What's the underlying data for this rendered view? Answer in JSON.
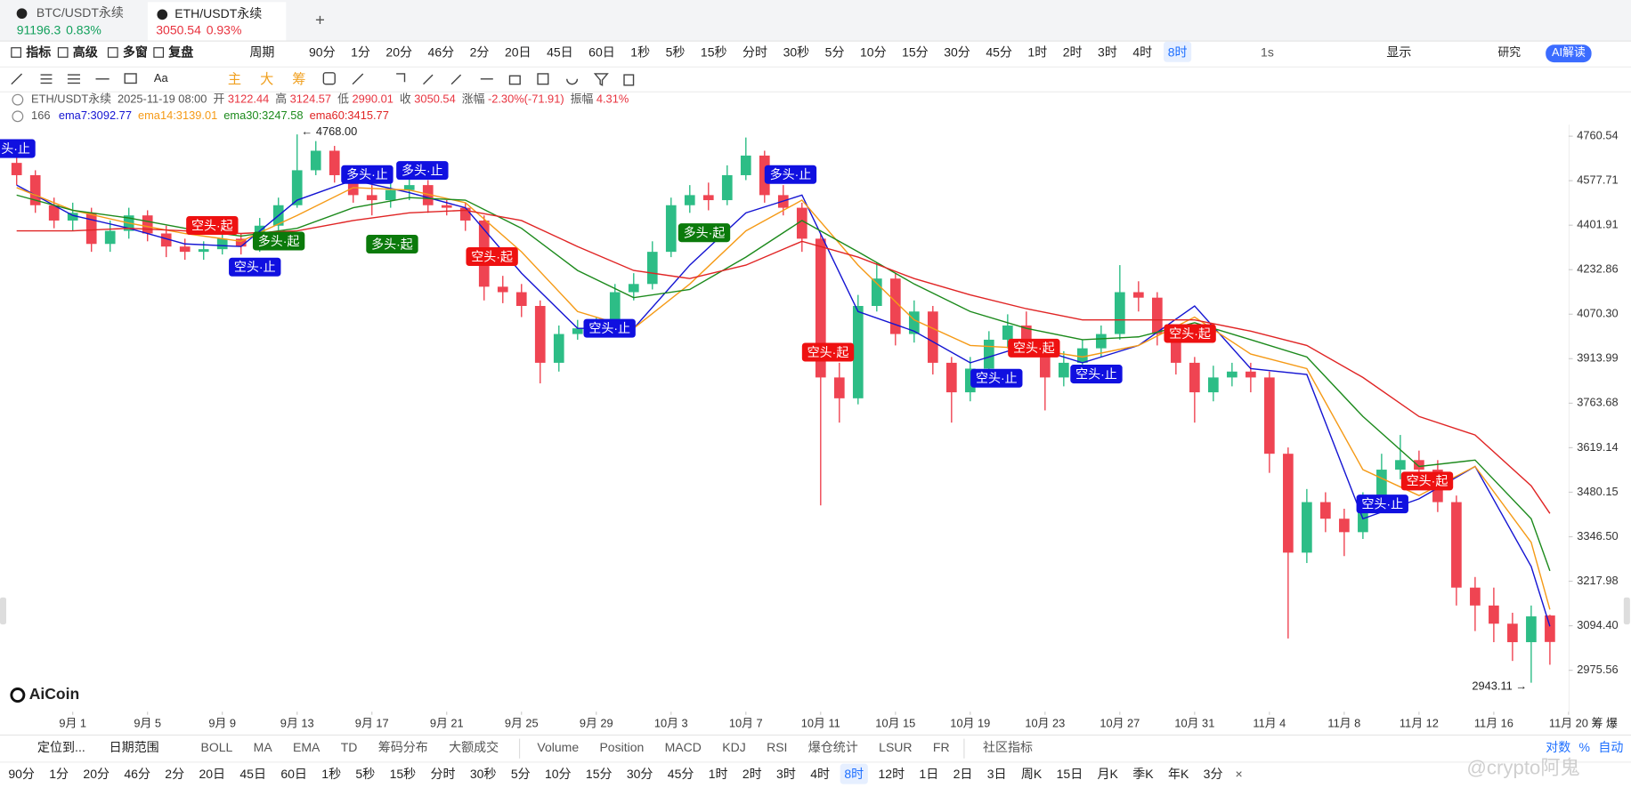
{
  "tabs": [
    {
      "symbol": "BTC/USDT永续",
      "price": "91196.3",
      "change": "0.83%"
    },
    {
      "symbol": "ETH/USDT永续",
      "price": "3050.54",
      "change": "0.93%"
    }
  ],
  "toolbar": {
    "left": [
      "指标",
      "高级",
      "多窗",
      "复盘"
    ],
    "period_label": "周期",
    "periods": [
      "90分",
      "1分",
      "20分",
      "46分",
      "2分",
      "20日",
      "45日",
      "60日",
      "1秒",
      "5秒",
      "15秒",
      "分时",
      "30秒",
      "5分",
      "10分",
      "15分",
      "30分",
      "45分",
      "1时",
      "2时",
      "3时",
      "4时",
      "8时"
    ],
    "active": "8时",
    "right": [
      "1s",
      "显示",
      "研究"
    ],
    "ai": "AI解读"
  },
  "drawing_tools": {
    "colors": [
      "主",
      "大",
      "筹"
    ]
  },
  "info": {
    "symbol": "ETH/USDT永续",
    "time": "2025-11-19 08:00",
    "items": [
      {
        "label": "开",
        "value": "3122.44"
      },
      {
        "label": "高",
        "value": "3124.57"
      },
      {
        "label": "低",
        "value": "2990.01"
      },
      {
        "label": "收",
        "value": "3050.54"
      },
      {
        "label": "涨幅",
        "value": "-2.30%(-71.91)"
      },
      {
        "label": "振幅",
        "value": "4.31%"
      }
    ],
    "count": "166",
    "emas": [
      "ema7:3092.77",
      "ema14:3139.01",
      "ema30:3247.58",
      "ema60:3415.77"
    ]
  },
  "chart_data": {
    "type": "candlestick",
    "log": true,
    "up_color": "#2dbd86",
    "down_color": "#ef4452",
    "xlim": [
      -3.89,
      80
    ],
    "ylim": [
      2869,
      4809
    ],
    "xticks": [
      {
        "value": 0,
        "label": "9月 1"
      },
      {
        "value": 4,
        "label": "9月 5"
      },
      {
        "value": 8,
        "label": "9月 9"
      },
      {
        "value": 12,
        "label": "9月 13"
      },
      {
        "value": 16,
        "label": "9月 17"
      },
      {
        "value": 20,
        "label": "9月 21"
      },
      {
        "value": 24,
        "label": "9月 25"
      },
      {
        "value": 28,
        "label": "9月 29"
      },
      {
        "value": 32,
        "label": "10月 3"
      },
      {
        "value": 36,
        "label": "10月 7"
      },
      {
        "value": 40,
        "label": "10月 11"
      },
      {
        "value": 44,
        "label": "10月 15"
      },
      {
        "value": 48,
        "label": "10月 19"
      },
      {
        "value": 52,
        "label": "10月 23"
      },
      {
        "value": 56,
        "label": "10月 27"
      },
      {
        "value": 60,
        "label": "10月 31"
      },
      {
        "value": 64,
        "label": "11月 4"
      },
      {
        "value": 68,
        "label": "11月 8"
      },
      {
        "value": 72,
        "label": "11月 12"
      },
      {
        "value": 76,
        "label": "11月 16"
      },
      {
        "value": 80,
        "label": "11月 20"
      }
    ],
    "yticks": [
      4760.54,
      4577.71,
      4401.91,
      4232.86,
      {
        "value": 4070.3,
        "label": "4070.30"
      },
      3913.99,
      3763.68,
      3619.14,
      3480.15,
      {
        "value": 3346.5,
        "label": "3346.50"
      },
      3217.98,
      {
        "value": 3094.4,
        "label": "3094.40"
      },
      2975.56
    ],
    "x": [
      -3,
      -2,
      -1,
      0,
      1,
      2,
      3,
      4,
      5,
      6,
      7,
      8,
      9,
      10,
      11,
      12,
      13,
      14,
      15,
      16,
      17,
      18,
      19,
      20,
      21,
      22,
      23,
      24,
      25,
      26,
      27,
      28,
      29,
      30,
      31,
      32,
      33,
      34,
      35,
      36,
      37,
      38,
      39,
      40,
      41,
      42,
      43,
      44,
      45,
      46,
      47,
      48,
      49,
      50,
      51,
      52,
      53,
      54,
      55,
      56,
      57,
      58,
      59,
      60,
      61,
      62,
      63,
      64,
      65,
      66,
      67,
      68,
      69,
      70,
      71,
      72,
      73,
      74,
      75,
      76,
      77,
      78,
      79
    ],
    "candles": {
      "open": [
        4650,
        4600,
        4480,
        4420,
        4450,
        4330,
        4380,
        4440,
        4370,
        4320,
        4300,
        4310,
        4350,
        4320,
        4400,
        4480,
        4620,
        4700,
        4600,
        4520,
        4500,
        4540,
        4560,
        4480,
        4470,
        4420,
        4170,
        4150,
        4100,
        3900,
        4000,
        4020,
        4030,
        4150,
        4180,
        4300,
        4480,
        4520,
        4500,
        4600,
        4680,
        4520,
        4470,
        4350,
        3850,
        3780,
        4100,
        4200,
        4000,
        4080,
        3900,
        3800,
        3880,
        3980,
        4030,
        3960,
        3850,
        3900,
        3950,
        4000,
        4150,
        4130,
        4000,
        3900,
        3800,
        3850,
        3870,
        3850,
        3600,
        3300,
        3450,
        3400,
        3360,
        3450,
        3550,
        3580,
        3550,
        3450,
        3200,
        3150,
        3100,
        3050,
        3122.44
      ],
      "high": [
        4690,
        4620,
        4510,
        4490,
        4470,
        4420,
        4470,
        4460,
        4400,
        4350,
        4340,
        4380,
        4370,
        4430,
        4510,
        4768,
        4740,
        4720,
        4620,
        4560,
        4580,
        4600,
        4580,
        4500,
        4490,
        4440,
        4210,
        4180,
        4120,
        4030,
        4050,
        4060,
        4180,
        4220,
        4340,
        4510,
        4560,
        4570,
        4640,
        4755,
        4700,
        4560,
        4490,
        4370,
        3900,
        4140,
        4260,
        4220,
        4120,
        4100,
        3920,
        3920,
        4010,
        4070,
        4080,
        3980,
        3940,
        3980,
        4030,
        4250,
        4190,
        4150,
        4030,
        3920,
        3890,
        3900,
        3900,
        3870,
        3620,
        3490,
        3480,
        3430,
        3480,
        3600,
        3660,
        3610,
        3580,
        3470,
        3230,
        3200,
        3130,
        3150,
        3124.57
      ],
      "low": [
        4560,
        4450,
        4390,
        4380,
        4300,
        4300,
        4350,
        4340,
        4280,
        4270,
        4270,
        4290,
        4290,
        4300,
        4380,
        4470,
        4600,
        4570,
        4490,
        4440,
        4470,
        4500,
        4450,
        4440,
        4380,
        4120,
        4110,
        4060,
        3830,
        3870,
        3980,
        3990,
        4010,
        4120,
        4160,
        4280,
        4450,
        4460,
        4480,
        4580,
        4490,
        4440,
        4300,
        3440,
        3700,
        3760,
        4080,
        3960,
        3970,
        3860,
        3700,
        3770,
        3850,
        3950,
        3920,
        3740,
        3820,
        3870,
        3920,
        3980,
        4080,
        3960,
        3860,
        3700,
        3770,
        3820,
        3800,
        3540,
        3060,
        3270,
        3360,
        3290,
        3340,
        3420,
        3520,
        3500,
        3420,
        3150,
        3080,
        3050,
        3000,
        2943.11,
        2990.01
      ],
      "close": [
        4600,
        4480,
        4420,
        4450,
        4330,
        4380,
        4440,
        4370,
        4320,
        4300,
        4310,
        4350,
        4320,
        4400,
        4480,
        4620,
        4700,
        4600,
        4520,
        4500,
        4540,
        4560,
        4480,
        4470,
        4420,
        4170,
        4150,
        4100,
        3900,
        4000,
        4020,
        4030,
        4150,
        4180,
        4300,
        4480,
        4520,
        4500,
        4600,
        4680,
        4520,
        4470,
        4350,
        3850,
        3780,
        4100,
        4200,
        4000,
        4080,
        3900,
        3800,
        3880,
        3980,
        4030,
        3960,
        3850,
        3900,
        3950,
        4000,
        4150,
        4130,
        4000,
        3900,
        3800,
        3850,
        3870,
        3850,
        3600,
        3300,
        3450,
        3400,
        3360,
        3450,
        3550,
        3580,
        3550,
        3450,
        3200,
        3150,
        3100,
        3050,
        3120,
        3050.54
      ]
    },
    "high_label": "← 4768.00",
    "low_label": "2943.11 →",
    "lines": {
      "x": [
        -3,
        0,
        3,
        6,
        9,
        12,
        15,
        18,
        21,
        24,
        27,
        30,
        33,
        36,
        39,
        42,
        45,
        48,
        51,
        54,
        57,
        60,
        63,
        66,
        69,
        72,
        75,
        78,
        79
      ],
      "series": [
        {
          "name": "ema7",
          "color": "#1414d2",
          "values": [
            4560,
            4440,
            4390,
            4330,
            4320,
            4500,
            4580,
            4530,
            4470,
            4220,
            4020,
            4020,
            4250,
            4450,
            4520,
            4080,
            4010,
            3900,
            3960,
            3900,
            3960,
            4100,
            3880,
            3860,
            3400,
            3460,
            3560,
            3260,
            3092.77
          ]
        },
        {
          "name": "ema14",
          "color": "#f59a16",
          "values": [
            4550,
            4460,
            4410,
            4370,
            4340,
            4440,
            4550,
            4540,
            4490,
            4300,
            4080,
            4020,
            4180,
            4380,
            4500,
            4250,
            4050,
            3960,
            3950,
            3920,
            3960,
            4060,
            3930,
            3880,
            3550,
            3470,
            3560,
            3330,
            3139.01
          ]
        },
        {
          "name": "ema30",
          "color": "#1c8a1c",
          "values": [
            4520,
            4460,
            4430,
            4390,
            4360,
            4390,
            4470,
            4510,
            4500,
            4390,
            4230,
            4130,
            4160,
            4280,
            4420,
            4300,
            4180,
            4080,
            4020,
            3980,
            3990,
            4040,
            3980,
            3920,
            3720,
            3560,
            3580,
            3400,
            3247.58
          ]
        },
        {
          "name": "ema60",
          "color": "#e02424",
          "values": [
            4380,
            4380,
            4390,
            4380,
            4370,
            4380,
            4420,
            4450,
            4460,
            4420,
            4320,
            4230,
            4200,
            4250,
            4340,
            4280,
            4200,
            4140,
            4090,
            4050,
            4050,
            4050,
            4010,
            3960,
            3850,
            3720,
            3660,
            3500,
            3415.77
          ]
        }
      ]
    },
    "signals": [
      {
        "label": "头·止",
        "color": "#1010e0"
      },
      {
        "label": "空头·起",
        "color": "#ee1111"
      },
      {
        "label": "多头·起",
        "color": "#0b7a0b"
      },
      {
        "label": "空头·止",
        "color": "#1010e0"
      },
      {
        "label": "多头·止",
        "color": "#1010e0"
      },
      {
        "label": "多头·止",
        "color": "#1010e0"
      },
      {
        "label": "多头·起",
        "color": "#0b7a0b"
      },
      {
        "label": "空头·起",
        "color": "#ee1111"
      },
      {
        "label": "空头·止",
        "color": "#1010e0"
      },
      {
        "label": "多头·起",
        "color": "#0b7a0b"
      },
      {
        "label": "多头·止",
        "color": "#1010e0"
      },
      {
        "label": "空头·起",
        "color": "#ee1111"
      },
      {
        "label": "空头·止",
        "color": "#1010e0"
      },
      {
        "label": "空头·起",
        "color": "#ee1111"
      },
      {
        "label": "空头·止",
        "color": "#1010e0"
      },
      {
        "label": "空头·起",
        "color": "#ee1111"
      },
      {
        "label": "空头·止",
        "color": "#1010e0"
      },
      {
        "label": "空头·起",
        "color": "#ee1111"
      }
    ],
    "axis_corner": [
      "筹",
      "爆"
    ]
  },
  "brand": "AiCoin",
  "bottom": {
    "left": [
      "定位到...",
      "日期范围"
    ],
    "indicators": [
      "BOLL",
      "MA",
      "EMA",
      "TD",
      "筹码分布",
      "大额成交"
    ],
    "indicators2": [
      "Volume",
      "Position",
      "MACD",
      "KDJ",
      "RSI",
      "爆仓统计",
      "LSUR",
      "FR"
    ],
    "social": "社区指标",
    "right": [
      "对数",
      "%",
      "自动"
    ]
  },
  "periods_bottom": [
    "90分",
    "1分",
    "20分",
    "46分",
    "2分",
    "20日",
    "45日",
    "60日",
    "1秒",
    "5秒",
    "15秒",
    "分时",
    "30秒",
    "5分",
    "10分",
    "15分",
    "30分",
    "45分",
    "1时",
    "2时",
    "3时",
    "4时",
    "8时",
    "12时",
    "1日",
    "2日",
    "3日",
    "周K",
    "15日",
    "月K",
    "季K",
    "年K",
    "3分"
  ],
  "watermark": "@crypto阿鬼"
}
